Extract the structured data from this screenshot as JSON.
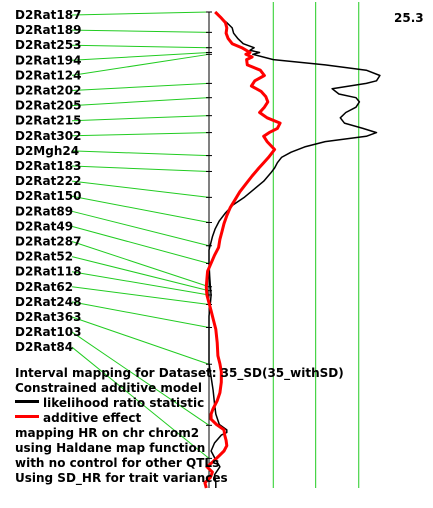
{
  "chart_data": {
    "type": "line",
    "orientation": "vertical",
    "title": "",
    "max_label": "25.3",
    "markers": [
      {
        "name": "D2Rat187",
        "pos": 0.0
      },
      {
        "name": "D2Rat189",
        "pos": 7.7
      },
      {
        "name": "D2Rat253",
        "pos": 13.5
      },
      {
        "name": "D2Rat194",
        "pos": 15.3
      },
      {
        "name": "D2Rat124",
        "pos": 16.0
      },
      {
        "name": "D2Rat202",
        "pos": 27.0
      },
      {
        "name": "D2Rat205",
        "pos": 32.4
      },
      {
        "name": "D2Rat215",
        "pos": 39.2
      },
      {
        "name": "D2Rat302",
        "pos": 45.6
      },
      {
        "name": "D2Mgh24",
        "pos": 54.3
      },
      {
        "name": "D2Rat183",
        "pos": 60.3
      },
      {
        "name": "D2Rat222",
        "pos": 70.1
      },
      {
        "name": "D2Rat150",
        "pos": 79.6
      },
      {
        "name": "D2Rat89",
        "pos": 88.4
      },
      {
        "name": "D2Rat49",
        "pos": 95.1
      },
      {
        "name": "D2Rat287",
        "pos": 103.9
      },
      {
        "name": "D2Rat52",
        "pos": 105.4
      },
      {
        "name": "D2Rat118",
        "pos": 107.0
      },
      {
        "name": "D2Rat62",
        "pos": 110.6
      },
      {
        "name": "D2Rat248",
        "pos": 119.3
      },
      {
        "name": "D2Rat363",
        "pos": 133.2
      },
      {
        "name": "D2Rat103",
        "pos": 156.3
      },
      {
        "name": "D2Rat84",
        "pos": 168.8
      }
    ],
    "map_length": 180,
    "lod_max": 25.3,
    "threshold_lines": [
      9.4,
      15.6,
      21.9
    ],
    "series": [
      {
        "name": "likelihood ratio statistic",
        "color": "#000000",
        "points": [
          [
            0,
            0.9
          ],
          [
            2,
            1.6
          ],
          [
            4,
            2.6
          ],
          [
            6,
            3.4
          ],
          [
            8,
            3.6
          ],
          [
            10,
            4.2
          ],
          [
            12,
            5.0
          ],
          [
            13.5,
            6.6
          ],
          [
            14.5,
            6.0
          ],
          [
            15.3,
            7.4
          ],
          [
            16,
            6.4
          ],
          [
            18,
            9.4
          ],
          [
            20,
            17.0
          ],
          [
            22,
            23.0
          ],
          [
            24,
            25.0
          ],
          [
            26,
            24.5
          ],
          [
            27,
            23.0
          ],
          [
            29,
            18.0
          ],
          [
            31,
            19.0
          ],
          [
            32.4,
            21.5
          ],
          [
            34,
            22.0
          ],
          [
            36,
            21.5
          ],
          [
            38,
            20.0
          ],
          [
            40,
            19.2
          ],
          [
            42,
            19.8
          ],
          [
            44,
            22.5
          ],
          [
            45.6,
            24.5
          ],
          [
            47,
            23.0
          ],
          [
            49,
            17.0
          ],
          [
            51,
            14.0
          ],
          [
            53,
            12.0
          ],
          [
            55,
            10.6
          ],
          [
            57,
            10.0
          ],
          [
            59,
            9.6
          ],
          [
            61,
            9.0
          ],
          [
            64,
            8.0
          ],
          [
            67,
            6.6
          ],
          [
            70,
            5.2
          ],
          [
            73,
            3.5
          ],
          [
            76,
            2.4
          ],
          [
            79,
            1.5
          ],
          [
            82,
            0.9
          ],
          [
            85,
            0.5
          ],
          [
            88,
            0.2
          ],
          [
            90,
            0.0
          ],
          [
            95,
            0.0
          ],
          [
            100,
            0.1
          ],
          [
            104,
            0.2
          ],
          [
            107,
            0.3
          ],
          [
            110,
            0.2
          ],
          [
            115,
            0.0
          ],
          [
            120,
            0.0
          ],
          [
            125,
            0.0
          ],
          [
            130,
            0.0
          ],
          [
            133,
            0.0
          ],
          [
            138,
            0.3
          ],
          [
            143,
            0.6
          ],
          [
            148,
            0.8
          ],
          [
            152,
            1.0
          ],
          [
            156,
            1.5
          ],
          [
            158,
            2.6
          ],
          [
            159,
            2.6
          ],
          [
            160,
            1.8
          ],
          [
            163,
            0.8
          ],
          [
            166,
            0.3
          ],
          [
            169,
            0.9
          ],
          [
            172,
            1.6
          ],
          [
            175,
            0.8
          ],
          [
            178,
            1.0
          ],
          [
            180,
            1.0
          ]
        ]
      },
      {
        "name": "additive effect",
        "color": "#ff0000",
        "points": [
          [
            0,
            0.9
          ],
          [
            2,
            1.7
          ],
          [
            4,
            2.4
          ],
          [
            6,
            2.6
          ],
          [
            8,
            2.5
          ],
          [
            10,
            2.8
          ],
          [
            12,
            3.4
          ],
          [
            13.5,
            4.8
          ],
          [
            15.3,
            6.0
          ],
          [
            16,
            5.4
          ],
          [
            17,
            6.3
          ],
          [
            18,
            5.5
          ],
          [
            20,
            5.6
          ],
          [
            22,
            7.5
          ],
          [
            24,
            8.1
          ],
          [
            26,
            6.7
          ],
          [
            28,
            6.2
          ],
          [
            30,
            7.6
          ],
          [
            32,
            8.3
          ],
          [
            34,
            8.6
          ],
          [
            36,
            8.1
          ],
          [
            38,
            7.4
          ],
          [
            40,
            8.5
          ],
          [
            42,
            10.4
          ],
          [
            44,
            10.0
          ],
          [
            45.6,
            8.8
          ],
          [
            47,
            8.0
          ],
          [
            49,
            8.5
          ],
          [
            52,
            9.6
          ],
          [
            55,
            8.7
          ],
          [
            57,
            8.0
          ],
          [
            59,
            7.3
          ],
          [
            62,
            6.3
          ],
          [
            65,
            5.4
          ],
          [
            68,
            4.5
          ],
          [
            71,
            3.8
          ],
          [
            74,
            3.1
          ],
          [
            77,
            2.6
          ],
          [
            80,
            2.2
          ],
          [
            83,
            1.9
          ],
          [
            86,
            1.6
          ],
          [
            89,
            1.4
          ],
          [
            92,
            0.8
          ],
          [
            95,
            0.3
          ],
          [
            98,
            -0.2
          ],
          [
            101,
            -0.3
          ],
          [
            104,
            -0.4
          ],
          [
            107,
            -0.3
          ],
          [
            110,
            0.0
          ],
          [
            113,
            0.3
          ],
          [
            116,
            0.6
          ],
          [
            120,
            1.0
          ],
          [
            125,
            1.2
          ],
          [
            130,
            1.3
          ],
          [
            133,
            1.6
          ],
          [
            136,
            1.8
          ],
          [
            140,
            1.8
          ],
          [
            144,
            1.6
          ],
          [
            147,
            1.2
          ],
          [
            150,
            0.6
          ],
          [
            152,
            0.3
          ],
          [
            154,
            0.3
          ],
          [
            156,
            1.1
          ],
          [
            158,
            2.2
          ],
          [
            160,
            2.3
          ],
          [
            162,
            2.5
          ],
          [
            164,
            2.6
          ],
          [
            166,
            2.2
          ],
          [
            168,
            1.4
          ],
          [
            170,
            0.6
          ],
          [
            172,
            -0.3
          ],
          [
            174,
            0.5
          ],
          [
            176,
            0.2
          ],
          [
            178,
            -0.6
          ],
          [
            180,
            -0.4
          ]
        ]
      }
    ]
  },
  "legend": {
    "line1": "Interval mapping for Dataset: 35_SD(35_withSD)",
    "line2": "Constrained additive model",
    "line3": "likelihood ratio statistic",
    "line4": "additive effect",
    "line5": "mapping HR on chr chrom2",
    "line6": "using Haldane map function",
    "line7": "with no control for other QTLs",
    "line8": "Using SD_HR for trait variances"
  }
}
